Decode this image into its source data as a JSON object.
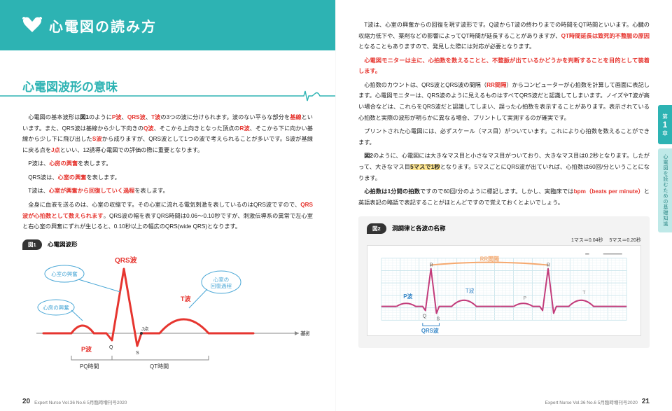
{
  "banner": {
    "title": "心電図の読み方"
  },
  "section": {
    "heading": "心電図波形の意味"
  },
  "left_paras": [
    {
      "html": "心電図の基本波形は<span class='bold'>図1</span>のように<span class='red'>P波</span>、<span class='red'>QRS波</span>、<span class='red'>T波</span>の3つの波に分けられます。波のない平らな部分を<span class='red'>基線</span>といいます。また、QRS波は基線から少し下向きの<span class='red'>Q波</span>、そこから上向きとなった頂点の<span class='red'>R波</span>、そこから下に向かい基線から少し下に飛び出した<span class='red'>S波</span>から成りますが、QRS波として1つの波で考えられることが多いです。S波が基線に戻る点を<span class='red'>J点</span>といい、12誘導心電図での評価の際に重要となります。"
    },
    {
      "html": "P波は、<span class='redb'>心房の興奮</span>を表します。"
    },
    {
      "html": "QRS波は、<span class='redb'>心室の興奮</span>を表します。"
    },
    {
      "html": "T波は、<span class='redb'>心室が興奮から回復していく過程</span>を表します。"
    },
    {
      "html": "全身に血液を送るのは、心室の収縮です。その心室に流れる電気刺激を表しているのはQRS波ですので、<span class='redb'>QRS波が心拍数として数えられます</span>。QRS波の幅を表すQRS時間は0.06〜0.10秒ですが、刺激伝導系の異常で左心室と右心室の興奮にずれが生じると、0.10秒以上の幅広のQRS(wide QRS)となります。"
    }
  ],
  "right_paras": [
    {
      "html": "T波は、心室の興奮からの回復を現す波形です。Q波からT波の終わりまでの時間をQT時間といいます。心臓の収縮力低下や、薬剤などの影響によってQT時間が延長することがありますが、<span class='redb'>QT時間延長は致死的不整脈の原因</span>となることもありますので、発見した際には対応が必要となります。"
    },
    {
      "html": "<span class='red bold'>心電図モニターは主に、心拍数を数えることと、不整脈が出ているかどうかを判断することを目的として装着します。</span>"
    },
    {
      "html": "心拍数のカウントは、QRS波とQRS波の間隔（<span class='red'>RR間隔</span>）からコンピューターが心拍数を計算して画面に表記します。心電図モニターは、QRS波のように見えるものはすべてQRS波だと認識してしまいます。ノイズやT波が高い場合などは、これらをQRS波だと認識してしまい、誤った心拍数を表示することがあります。表示されている心拍数と実際の波形が明らかに異なる場合、プリントして実測するのが確実です。"
    },
    {
      "html": "プリントされた心電図には、必ずスケール（マス目）がついています。これにより心拍数を数えることができます。"
    },
    {
      "html": "<span class='bold'>図2</span>のように、心電図には大きなマス目と小さなマス目がついており、大きなマス目は0.2秒となります。したがって、大きなマス目<span class='hl'>5マスで1秒</span>となります。5マスごとにQRS波が出ていれば、心拍数は60回/分ということになります。"
    },
    {
      "html": "<span class='bold'>心拍数は1分間の拍数</span>ですので60回/分のように標記します。しかし、実臨床では<span class='redb'>bpm（beats per minute）</span>と英語表記の略語で表記することがほとんどですので覚えておくとよいでしょう。"
    }
  ],
  "fig1": {
    "tag": "図1",
    "caption": "心電図波形",
    "labels": {
      "ventricle_ex": "心室の興奮",
      "atrium_ex": "心房の興奮",
      "recovery": "心室の\n回復過程",
      "p": "P波",
      "qrs": "QRS波",
      "t": "T波",
      "j": "J点",
      "q": "Q",
      "s": "S",
      "baseline": "基線",
      "pq": "PQ時間",
      "qt": "QT時間"
    },
    "colors": {
      "wave": "#e6352f",
      "annot": "#4aa7d6",
      "axis": "#888",
      "text": "#333"
    }
  },
  "fig2": {
    "tag": "図2",
    "caption": "洞調律と各波の名称",
    "note_small": "1マス＝0.04秒",
    "note_large": "5マス＝0.20秒",
    "labels": {
      "rr": "RR間隔",
      "p": "P波",
      "q": "Q",
      "r": "R",
      "s": "S",
      "t": "T波",
      "qrs": "QRS波"
    },
    "colors": {
      "grid_major": "#cfe7ed",
      "grid_minor": "#e9f3f6",
      "wave": "#c23b7a",
      "brace": "#f5a86e",
      "label": "#3a89c9"
    }
  },
  "sidetab": {
    "top_prefix": "第",
    "top_num": "1",
    "top_suffix": "章",
    "bottom": "心電図を読むための基礎知識"
  },
  "footer": {
    "left_num": "20",
    "right_num": "21",
    "text": "Expert Nurse Vol.36 No.6  5月臨時増刊号2020"
  }
}
